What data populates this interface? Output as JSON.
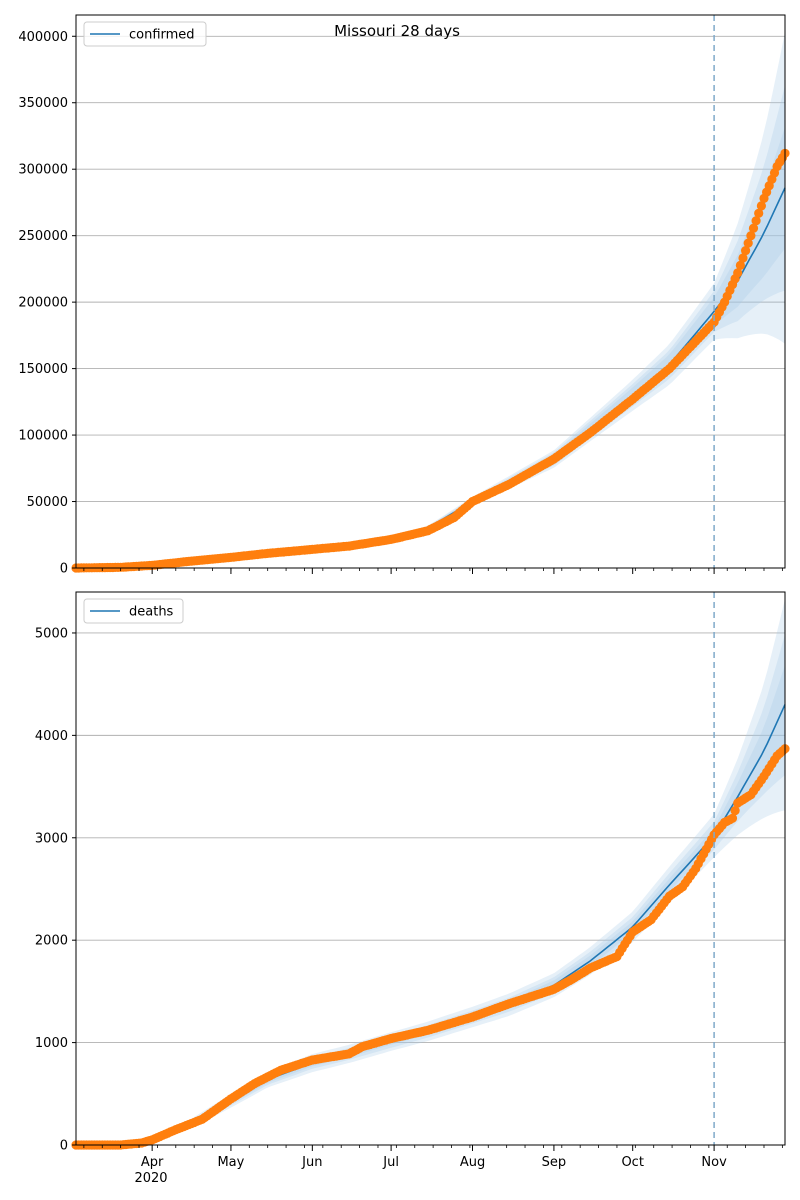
{
  "title": "Missouri 28 days",
  "colors": {
    "fit_line": "#1f77b4",
    "band": "#a6c8e6",
    "observed": "#ff7f0e",
    "grid": "#b0b0b0",
    "forecast_line": "#7fa9c9"
  },
  "x_axis": {
    "ticks": [
      {
        "date": "2020-04-01",
        "label": "Apr"
      },
      {
        "date": "2020-05-01",
        "label": "May"
      },
      {
        "date": "2020-06-01",
        "label": "Jun"
      },
      {
        "date": "2020-07-01",
        "label": "Jul"
      },
      {
        "date": "2020-08-01",
        "label": "Aug"
      },
      {
        "date": "2020-09-01",
        "label": "Sep"
      },
      {
        "date": "2020-10-01",
        "label": "Oct"
      },
      {
        "date": "2020-11-01",
        "label": "Nov"
      }
    ],
    "year_label": "2020",
    "range": [
      "2020-03-03",
      "2020-11-28"
    ]
  },
  "chart_data": [
    {
      "type": "line",
      "legend": [
        "confirmed"
      ],
      "legend_position": "upper-left",
      "grid": "horizontal",
      "ylim": [
        0,
        416000
      ],
      "yticks": [
        0,
        50000,
        100000,
        150000,
        200000,
        250000,
        300000,
        350000,
        400000
      ],
      "forecast_start": "2020-11-01",
      "fit": {
        "x": [
          "2020-03-03",
          "2020-04-01",
          "2020-05-01",
          "2020-06-01",
          "2020-07-01",
          "2020-07-15",
          "2020-08-01",
          "2020-09-01",
          "2020-10-01",
          "2020-10-15",
          "2020-11-01",
          "2020-11-10",
          "2020-11-20",
          "2020-11-28"
        ],
        "y": [
          0,
          1500,
          8500,
          14000,
          22000,
          30000,
          50000,
          82000,
          130000,
          153000,
          193000,
          216000,
          252000,
          286000
        ]
      },
      "bands": [
        {
          "half_width_fraction": [
            0.02,
            0.02,
            0.03,
            0.04,
            0.05,
            0.06,
            0.07,
            0.08,
            0.09,
            0.1,
            0.11,
            0.2,
            0.3,
            0.41
          ]
        },
        {
          "half_width_fraction": [
            0.015,
            0.015,
            0.02,
            0.03,
            0.04,
            0.045,
            0.05,
            0.06,
            0.065,
            0.07,
            0.08,
            0.14,
            0.2,
            0.27
          ]
        },
        {
          "half_width_fraction": [
            0.01,
            0.01,
            0.015,
            0.02,
            0.025,
            0.03,
            0.035,
            0.04,
            0.045,
            0.05,
            0.055,
            0.09,
            0.13,
            0.16
          ]
        }
      ],
      "observed": {
        "x": [
          "2020-03-03",
          "2020-03-20",
          "2020-04-01",
          "2020-04-15",
          "2020-05-01",
          "2020-05-15",
          "2020-06-01",
          "2020-06-15",
          "2020-07-01",
          "2020-07-15",
          "2020-07-25",
          "2020-08-01",
          "2020-08-15",
          "2020-09-01",
          "2020-09-15",
          "2020-10-01",
          "2020-10-15",
          "2020-11-01",
          "2020-11-05",
          "2020-11-10",
          "2020-11-15",
          "2020-11-20",
          "2020-11-25",
          "2020-11-28"
        ],
        "y": [
          0,
          500,
          2000,
          5000,
          8000,
          11000,
          14000,
          16500,
          21500,
          28000,
          38000,
          50000,
          63000,
          82000,
          102000,
          127000,
          150000,
          185000,
          200000,
          222000,
          250000,
          278000,
          302000,
          312000
        ]
      }
    },
    {
      "type": "line",
      "legend": [
        "deaths"
      ],
      "legend_position": "upper-left",
      "grid": "horizontal",
      "ylim": [
        0,
        5400
      ],
      "yticks": [
        0,
        1000,
        2000,
        3000,
        4000,
        5000
      ],
      "forecast_start": "2020-11-01",
      "fit": {
        "x": [
          "2020-03-03",
          "2020-03-25",
          "2020-04-01",
          "2020-04-15",
          "2020-05-01",
          "2020-05-15",
          "2020-06-01",
          "2020-06-15",
          "2020-07-01",
          "2020-07-15",
          "2020-08-01",
          "2020-08-15",
          "2020-09-01",
          "2020-09-15",
          "2020-10-01",
          "2020-10-15",
          "2020-11-01",
          "2020-11-10",
          "2020-11-20",
          "2020-11-28"
        ],
        "y": [
          0,
          20,
          60,
          200,
          430,
          640,
          800,
          890,
          1010,
          1110,
          1250,
          1370,
          1560,
          1800,
          2130,
          2540,
          3020,
          3400,
          3850,
          4300
        ]
      },
      "bands": [
        {
          "half_width_fraction": [
            0.02,
            0.2,
            0.3,
            0.2,
            0.15,
            0.12,
            0.11,
            0.1,
            0.09,
            0.085,
            0.08,
            0.08,
            0.075,
            0.075,
            0.07,
            0.07,
            0.07,
            0.11,
            0.17,
            0.24
          ]
        },
        {
          "half_width_fraction": [
            0.015,
            0.14,
            0.2,
            0.14,
            0.1,
            0.08,
            0.07,
            0.065,
            0.06,
            0.055,
            0.05,
            0.05,
            0.05,
            0.05,
            0.045,
            0.045,
            0.045,
            0.07,
            0.11,
            0.16
          ]
        },
        {
          "half_width_fraction": [
            0.01,
            0.08,
            0.12,
            0.08,
            0.06,
            0.05,
            0.04,
            0.035,
            0.03,
            0.03,
            0.03,
            0.03,
            0.03,
            0.03,
            0.025,
            0.025,
            0.025,
            0.04,
            0.06,
            0.09
          ]
        }
      ],
      "observed": {
        "x": [
          "2020-03-03",
          "2020-03-20",
          "2020-03-28",
          "2020-04-01",
          "2020-04-10",
          "2020-04-20",
          "2020-05-01",
          "2020-05-10",
          "2020-05-20",
          "2020-06-01",
          "2020-06-15",
          "2020-06-20",
          "2020-07-01",
          "2020-07-15",
          "2020-08-01",
          "2020-08-15",
          "2020-09-01",
          "2020-09-08",
          "2020-09-15",
          "2020-09-25",
          "2020-10-01",
          "2020-10-08",
          "2020-10-15",
          "2020-10-20",
          "2020-10-25",
          "2020-11-01",
          "2020-11-05",
          "2020-11-08",
          "2020-11-10",
          "2020-11-15",
          "2020-11-20",
          "2020-11-25",
          "2020-11-28"
        ],
        "y": [
          0,
          0,
          20,
          50,
          150,
          250,
          450,
          600,
          730,
          830,
          890,
          960,
          1040,
          1120,
          1250,
          1380,
          1520,
          1620,
          1730,
          1840,
          2080,
          2200,
          2430,
          2520,
          2700,
          3030,
          3150,
          3190,
          3340,
          3420,
          3600,
          3800,
          3870
        ]
      }
    }
  ]
}
